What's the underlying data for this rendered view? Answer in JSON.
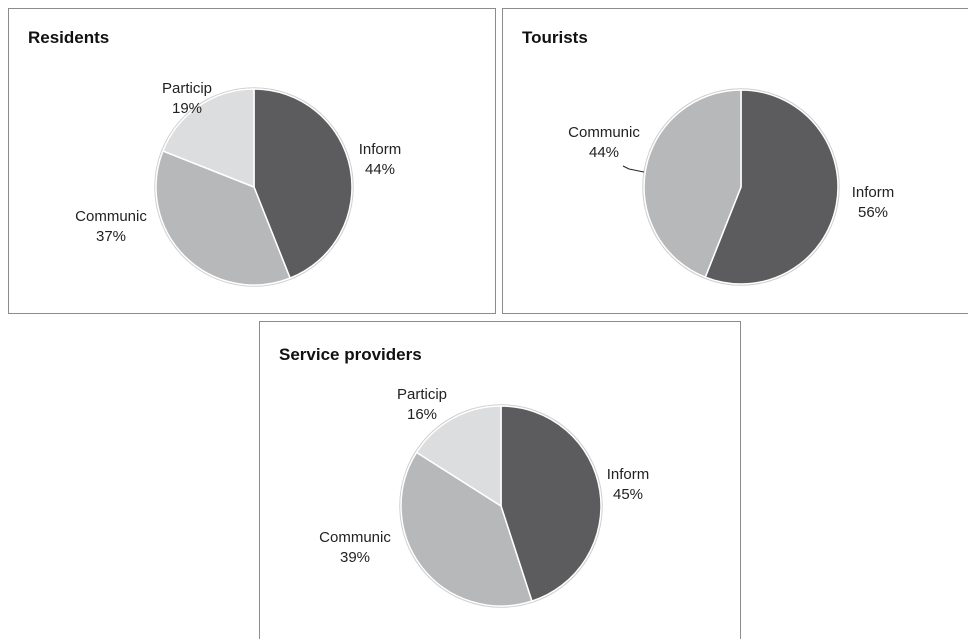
{
  "colors": {
    "Inform": "#5c5c5e",
    "Communic": "#b7b8ba",
    "Particip": "#dcddde"
  },
  "chart_data": [
    {
      "type": "pie",
      "title": "Residents",
      "categories": [
        "Inform",
        "Communic",
        "Particip"
      ],
      "values": [
        44,
        37,
        19
      ],
      "labels": [
        {
          "category": "Inform",
          "value": "44%"
        },
        {
          "category": "Communic",
          "value": "37%"
        },
        {
          "category": "Particip",
          "value": "19%"
        }
      ]
    },
    {
      "type": "pie",
      "title": "Tourists",
      "categories": [
        "Inform",
        "Communic"
      ],
      "values": [
        56,
        44
      ],
      "labels": [
        {
          "category": "Inform",
          "value": "56%"
        },
        {
          "category": "Communic",
          "value": "44%"
        }
      ]
    },
    {
      "type": "pie",
      "title": "Service providers",
      "categories": [
        "Inform",
        "Communic",
        "Particip"
      ],
      "values": [
        45,
        39,
        16
      ],
      "labels": [
        {
          "category": "Inform",
          "value": "45%"
        },
        {
          "category": "Communic",
          "value": "39%"
        },
        {
          "category": "Particip",
          "value": "16%"
        }
      ]
    }
  ]
}
